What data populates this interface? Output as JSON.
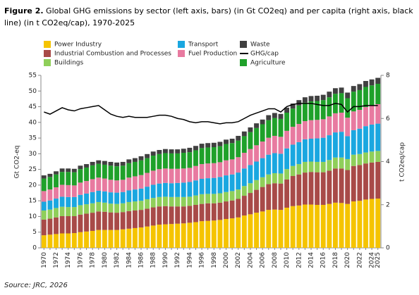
{
  "chart_data": {
    "type": "bar",
    "figure_label": "Figure 2.",
    "title": "Global GHG emissions by sector (left axis, bars) (in Gt CO2eq) and per capita (right axis, black line) (in t CO2eq/cap), 1970-2025",
    "y_label": "Gt CO2-eq",
    "y2_label": "t CO2eq/cap",
    "source": "Source: JRC, 2026",
    "categories": [
      "1970",
      null,
      "1972",
      null,
      "1974",
      null,
      "1976",
      null,
      "1978",
      null,
      "1980",
      null,
      "1982",
      null,
      "1984",
      null,
      "1986",
      null,
      "1988",
      null,
      "1990",
      null,
      "1992",
      null,
      "1994",
      null,
      "1996",
      null,
      "1998",
      null,
      "2000",
      null,
      "2002",
      null,
      "2004",
      null,
      "2006",
      null,
      "2008",
      null,
      "2010",
      null,
      "2012",
      null,
      "2014",
      null,
      "2016",
      null,
      "2018",
      null,
      "2020",
      null,
      "2022",
      null,
      "2024",
      "2025"
    ],
    "ylim": [
      0,
      55
    ],
    "yticks": [
      0,
      5,
      10,
      15,
      20,
      25,
      30,
      35,
      40,
      45,
      50,
      55
    ],
    "y2lim": [
      0,
      8
    ],
    "y2ticks": [
      0,
      2,
      4,
      6,
      8
    ],
    "series": [
      {
        "name": "Power Industry",
        "color": "#f5c400",
        "values": [
          4.0,
          4.2,
          4.4,
          4.6,
          4.6,
          4.7,
          5.0,
          5.2,
          5.4,
          5.7,
          5.7,
          5.7,
          5.7,
          5.9,
          6.1,
          6.3,
          6.5,
          6.8,
          7.1,
          7.4,
          7.5,
          7.6,
          7.7,
          7.8,
          8.0,
          8.2,
          8.5,
          8.6,
          8.7,
          8.9,
          9.2,
          9.4,
          9.7,
          10.3,
          10.7,
          11.2,
          11.6,
          12.1,
          12.2,
          12.1,
          12.8,
          13.3,
          13.5,
          13.8,
          13.8,
          13.7,
          13.7,
          14.0,
          14.4,
          14.3,
          14.0,
          14.8,
          15.0,
          15.4,
          15.6,
          15.7
        ]
      },
      {
        "name": "Industrial Combustion and Processes",
        "color": "#a84a48",
        "values": [
          5.0,
          5.1,
          5.3,
          5.5,
          5.5,
          5.4,
          5.6,
          5.7,
          5.8,
          5.9,
          5.8,
          5.6,
          5.5,
          5.5,
          5.6,
          5.6,
          5.6,
          5.7,
          5.8,
          5.8,
          5.8,
          5.6,
          5.5,
          5.4,
          5.4,
          5.5,
          5.5,
          5.6,
          5.5,
          5.5,
          5.6,
          5.7,
          5.9,
          6.3,
          6.8,
          7.3,
          7.8,
          8.2,
          8.4,
          8.4,
          9.0,
          9.6,
          9.9,
          10.2,
          10.4,
          10.4,
          10.4,
          10.6,
          10.9,
          11.0,
          10.8,
          11.3,
          11.4,
          11.5,
          11.6,
          11.7
        ]
      },
      {
        "name": "Buildings",
        "color": "#8fcf5a",
        "values": [
          2.9,
          2.9,
          3.0,
          3.0,
          2.9,
          2.9,
          3.0,
          3.0,
          3.0,
          3.0,
          2.9,
          2.8,
          2.8,
          2.8,
          2.9,
          2.9,
          2.9,
          3.0,
          3.0,
          3.0,
          3.0,
          3.0,
          3.0,
          3.0,
          2.9,
          3.0,
          3.1,
          3.0,
          3.0,
          3.0,
          3.0,
          3.0,
          3.0,
          3.1,
          3.1,
          3.1,
          3.1,
          3.1,
          3.2,
          3.2,
          3.3,
          3.2,
          3.3,
          3.4,
          3.3,
          3.3,
          3.3,
          3.4,
          3.5,
          3.5,
          3.5,
          3.6,
          3.5,
          3.5,
          3.5,
          3.5
        ]
      },
      {
        "name": "Transport",
        "color": "#1aa7e0",
        "values": [
          2.8,
          2.9,
          3.0,
          3.2,
          3.2,
          3.2,
          3.3,
          3.4,
          3.6,
          3.6,
          3.6,
          3.6,
          3.6,
          3.6,
          3.7,
          3.8,
          3.9,
          4.0,
          4.2,
          4.3,
          4.4,
          4.4,
          4.5,
          4.6,
          4.7,
          4.8,
          4.9,
          5.0,
          5.1,
          5.2,
          5.3,
          5.3,
          5.4,
          5.6,
          5.8,
          5.9,
          6.1,
          6.3,
          6.4,
          6.3,
          6.6,
          6.8,
          7.0,
          7.2,
          7.3,
          7.5,
          7.7,
          7.9,
          8.0,
          8.2,
          7.3,
          7.8,
          8.1,
          8.4,
          8.6,
          8.7
        ]
      },
      {
        "name": "Fuel Production",
        "color": "#e87aa0",
        "values": [
          3.4,
          3.5,
          3.6,
          3.8,
          3.8,
          3.7,
          3.9,
          4.0,
          4.1,
          4.2,
          4.1,
          4.0,
          3.9,
          3.9,
          4.1,
          4.2,
          4.3,
          4.4,
          4.5,
          4.6,
          4.6,
          4.6,
          4.5,
          4.5,
          4.5,
          4.6,
          4.7,
          4.7,
          4.7,
          4.7,
          4.8,
          4.8,
          4.9,
          5.0,
          5.1,
          5.2,
          5.3,
          5.4,
          5.5,
          5.4,
          5.6,
          5.7,
          5.8,
          5.8,
          5.9,
          5.9,
          5.9,
          6.0,
          6.1,
          6.1,
          5.9,
          6.0,
          6.0,
          6.1,
          6.1,
          6.2
        ]
      },
      {
        "name": "Agriculture",
        "color": "#1fa12a",
        "values": [
          4.0,
          4.0,
          4.1,
          4.1,
          4.2,
          4.2,
          4.3,
          4.3,
          4.4,
          4.4,
          4.4,
          4.5,
          4.5,
          4.5,
          4.6,
          4.6,
          4.7,
          4.7,
          4.8,
          4.8,
          4.9,
          4.9,
          4.9,
          5.0,
          5.0,
          5.0,
          5.1,
          5.1,
          5.1,
          5.1,
          5.2,
          5.2,
          5.3,
          5.3,
          5.4,
          5.5,
          5.5,
          5.6,
          5.7,
          5.7,
          5.8,
          5.8,
          5.9,
          5.9,
          6.0,
          6.0,
          6.1,
          6.1,
          6.2,
          6.2,
          6.2,
          6.3,
          6.3,
          6.4,
          6.4,
          6.5
        ]
      },
      {
        "name": "Waste",
        "color": "#404040",
        "values": [
          1.0,
          1.0,
          1.0,
          1.1,
          1.1,
          1.1,
          1.1,
          1.1,
          1.1,
          1.1,
          1.2,
          1.2,
          1.2,
          1.2,
          1.2,
          1.2,
          1.3,
          1.3,
          1.3,
          1.3,
          1.3,
          1.3,
          1.3,
          1.3,
          1.4,
          1.4,
          1.4,
          1.4,
          1.4,
          1.4,
          1.4,
          1.4,
          1.5,
          1.5,
          1.5,
          1.5,
          1.5,
          1.6,
          1.6,
          1.6,
          1.6,
          1.6,
          1.7,
          1.7,
          1.7,
          1.7,
          1.7,
          1.8,
          1.8,
          1.8,
          1.8,
          1.8,
          1.9,
          1.9,
          1.9,
          1.9
        ]
      },
      {
        "name": "GHG/cap",
        "color": "#000000",
        "axis": "y2",
        "values": [
          6.3,
          6.2,
          6.35,
          6.5,
          6.4,
          6.35,
          6.45,
          6.5,
          6.55,
          6.6,
          6.4,
          6.2,
          6.1,
          6.05,
          6.1,
          6.05,
          6.05,
          6.05,
          6.1,
          6.15,
          6.15,
          6.1,
          6.0,
          5.95,
          5.85,
          5.8,
          5.85,
          5.85,
          5.8,
          5.75,
          5.8,
          5.8,
          5.85,
          6.0,
          6.15,
          6.25,
          6.35,
          6.45,
          6.45,
          6.3,
          6.55,
          6.65,
          6.7,
          6.7,
          6.7,
          6.65,
          6.6,
          6.6,
          6.7,
          6.65,
          6.3,
          6.55,
          6.55,
          6.6,
          6.6,
          6.6
        ]
      }
    ]
  }
}
